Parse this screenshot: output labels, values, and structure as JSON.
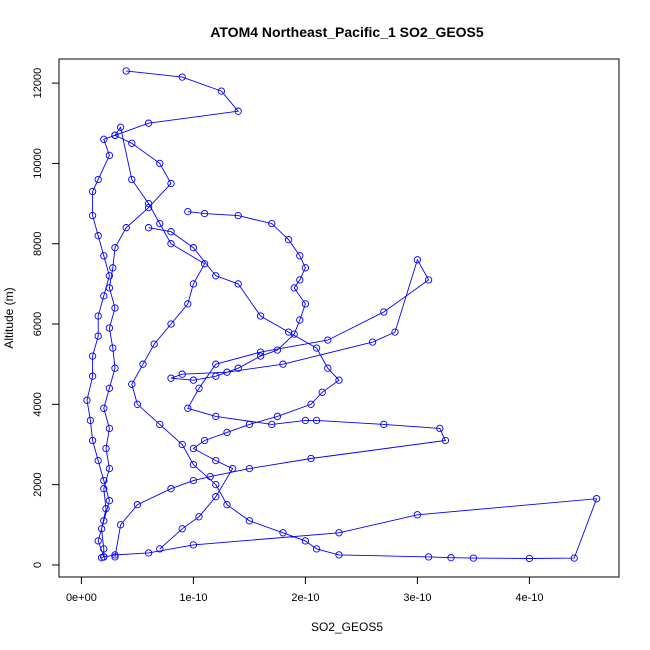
{
  "chart_data": {
    "type": "scatter",
    "title": "ATOM4 Northeast_Pacific_1 SO2_GEOS5",
    "xlabel": "SO2_GEOS5",
    "ylabel": "Altitude (m)",
    "xlim": [
      -2e-11,
      4.8e-10
    ],
    "ylim": [
      -300,
      12600
    ],
    "x_ticks": [
      0,
      1e-10,
      2e-10,
      3e-10,
      4e-10
    ],
    "x_tick_labels": [
      "0e+00",
      "1e-10",
      "2e-10",
      "3e-10",
      "4e-10"
    ],
    "y_ticks": [
      0,
      2000,
      4000,
      6000,
      8000,
      10000,
      12000
    ],
    "y_tick_labels": [
      "0",
      "2000",
      "4000",
      "6000",
      "8000",
      "10000",
      "12000"
    ],
    "grid": false,
    "line_color": "#0000ff",
    "marker": "open-circle",
    "series": [
      {
        "x": [
          4e-11,
          9e-11,
          1.25e-10,
          1.4e-10,
          6e-11,
          3e-11,
          2e-11,
          2.5e-11,
          1.5e-11,
          1e-11,
          1e-11,
          1.5e-11,
          2e-11,
          2.5e-11,
          2e-11,
          1.5e-11,
          1.5e-11,
          1e-11,
          1e-11,
          5e-12,
          8e-12,
          1e-11,
          1.5e-11,
          2e-11,
          2.5e-11,
          2e-11,
          1.5e-11,
          2e-11,
          2e-11,
          1.8e-11,
          2.2e-11,
          2e-11,
          2.5e-11,
          2.2e-11,
          2.5e-11,
          2e-11,
          2.5e-11,
          3e-11,
          2.8e-11,
          2.5e-11,
          3e-11,
          2.5e-11,
          2.8e-11,
          3e-11,
          4e-11,
          6e-11,
          8e-11,
          7e-11,
          4.5e-11,
          3e-11,
          3.5e-11,
          4.5e-11,
          6e-11,
          7e-11,
          8e-11,
          1.1e-10,
          1e-10,
          9.5e-11,
          8e-11,
          6.5e-11,
          5.5e-11,
          4.5e-11,
          5e-11,
          7e-11,
          9e-11,
          1e-10,
          1.2e-10,
          1.3e-10,
          1.5e-10,
          1.8e-10,
          2e-10,
          2.1e-10,
          2.3e-10,
          3.1e-10,
          3.3e-10,
          3.5e-10,
          4e-10,
          4.4e-10,
          4.6e-10,
          3e-10,
          2.3e-10,
          1e-10,
          6e-11,
          3e-11,
          2e-11,
          1.8e-11
        ],
        "y": [
          12300,
          12150,
          11800,
          11300,
          11000,
          10700,
          10600,
          10200,
          9600,
          9300,
          8700,
          8200,
          7700,
          7200,
          6700,
          6200,
          5700,
          5200,
          4700,
          4100,
          3600,
          3100,
          2600,
          2100,
          1600,
          1100,
          600,
          200,
          400,
          900,
          1400,
          1900,
          2400,
          2900,
          3400,
          3900,
          4400,
          4900,
          5400,
          5900,
          6400,
          6900,
          7400,
          7900,
          8400,
          8900,
          9500,
          10000,
          10500,
          10700,
          10900,
          9600,
          9000,
          8500,
          8000,
          7500,
          7000,
          6500,
          6000,
          5500,
          5000,
          4500,
          4000,
          3500,
          3000,
          2500,
          2000,
          1500,
          1100,
          800,
          600,
          400,
          250,
          200,
          180,
          170,
          160,
          170,
          1650,
          1250,
          800,
          500,
          300,
          250,
          200,
          180
        ]
      },
      {
        "x": [
          9.5e-11,
          1.1e-10,
          1.4e-10,
          1.7e-10,
          1.85e-10,
          1.95e-10,
          2e-10,
          1.95e-10,
          1.9e-10,
          2e-10,
          1.95e-10,
          1.9e-10,
          1.75e-10,
          1.6e-10,
          1.4e-10,
          1.2e-10,
          1e-10,
          8e-11,
          9e-11,
          1.3e-10,
          1.8e-10,
          2.6e-10,
          2.8e-10,
          3e-10,
          3.1e-10,
          2.7e-10,
          2.2e-10,
          1.6e-10,
          1.2e-10,
          1.05e-10,
          9.5e-11,
          1.2e-10,
          1.7e-10,
          2e-10,
          2.1e-10,
          2.7e-10,
          3.2e-10,
          3.25e-10,
          2.05e-10,
          1.5e-10,
          1.15e-10,
          1e-10,
          8e-11,
          5e-11,
          3.5e-11,
          3e-11
        ],
        "y": [
          8800,
          8750,
          8700,
          8500,
          8100,
          7700,
          7400,
          7100,
          6900,
          6500,
          6100,
          5750,
          5350,
          5200,
          4900,
          4700,
          4600,
          4650,
          4750,
          4800,
          5000,
          5550,
          5800,
          7600,
          7100,
          6300,
          5600,
          5300,
          5000,
          4400,
          3900,
          3700,
          3500,
          3600,
          3600,
          3500,
          3400,
          3100,
          2650,
          2400,
          2200,
          2100,
          1900,
          1500,
          1000,
          200
        ]
      },
      {
        "x": [
          6e-11,
          8e-11,
          1e-10,
          1.2e-10,
          1.4e-10,
          1.6e-10,
          1.85e-10,
          2.1e-10,
          2.2e-10,
          2.3e-10,
          2.15e-10,
          2.05e-10,
          1.75e-10,
          1.5e-10,
          1.3e-10,
          1.1e-10,
          1e-10,
          1.2e-10,
          1.35e-10,
          1.2e-10,
          1.05e-10,
          9e-11,
          7e-11
        ],
        "y": [
          8400,
          8300,
          7900,
          7200,
          7000,
          6200,
          5800,
          5400,
          4900,
          4600,
          4300,
          4000,
          3700,
          3500,
          3300,
          3100,
          2900,
          2600,
          2400,
          1700,
          1200,
          900,
          400
        ]
      }
    ]
  }
}
